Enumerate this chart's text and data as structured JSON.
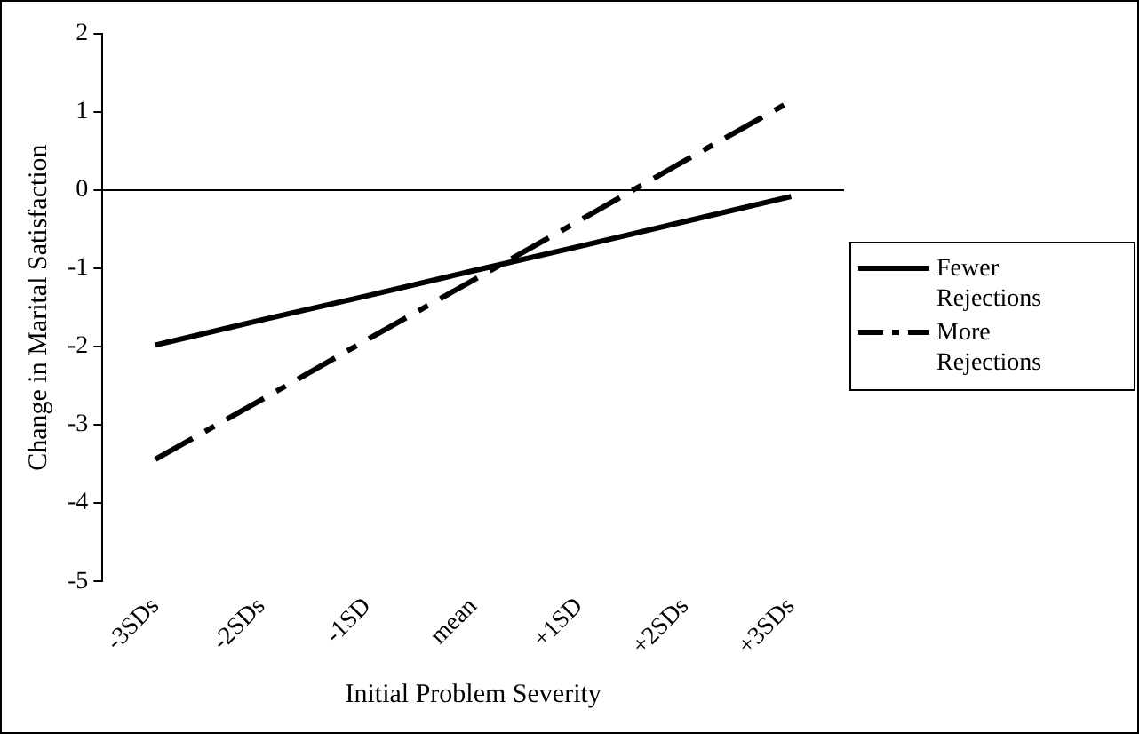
{
  "chart_data": {
    "type": "line",
    "xlabel": "Initial Problem Severity",
    "ylabel": "Change in Marital Satisfaction",
    "categories": [
      "-3SDs",
      "-2SDs",
      "-1SD",
      "mean",
      "+1SD",
      "+2SDs",
      "+3SDs"
    ],
    "series": [
      {
        "name": "Fewer Rejections",
        "color": "#000000",
        "line_style": "solid",
        "values": [
          -1.98,
          -1.66,
          -1.35,
          -1.03,
          -0.72,
          -0.4,
          -0.08
        ]
      },
      {
        "name": "More Rejections",
        "color": "#000000",
        "line_style": "dashed",
        "values": [
          -3.44,
          -2.68,
          -1.91,
          -1.15,
          -0.39,
          0.38,
          1.14
        ]
      }
    ],
    "ylim": [
      -5,
      2
    ],
    "yticks": [
      -5,
      -4,
      -3,
      -2,
      -1,
      0,
      1,
      2
    ],
    "grid": false,
    "legend": "right",
    "marker": "none",
    "ref_lines": [
      {
        "axis": "y",
        "value": 0,
        "color": "#000000"
      }
    ]
  }
}
